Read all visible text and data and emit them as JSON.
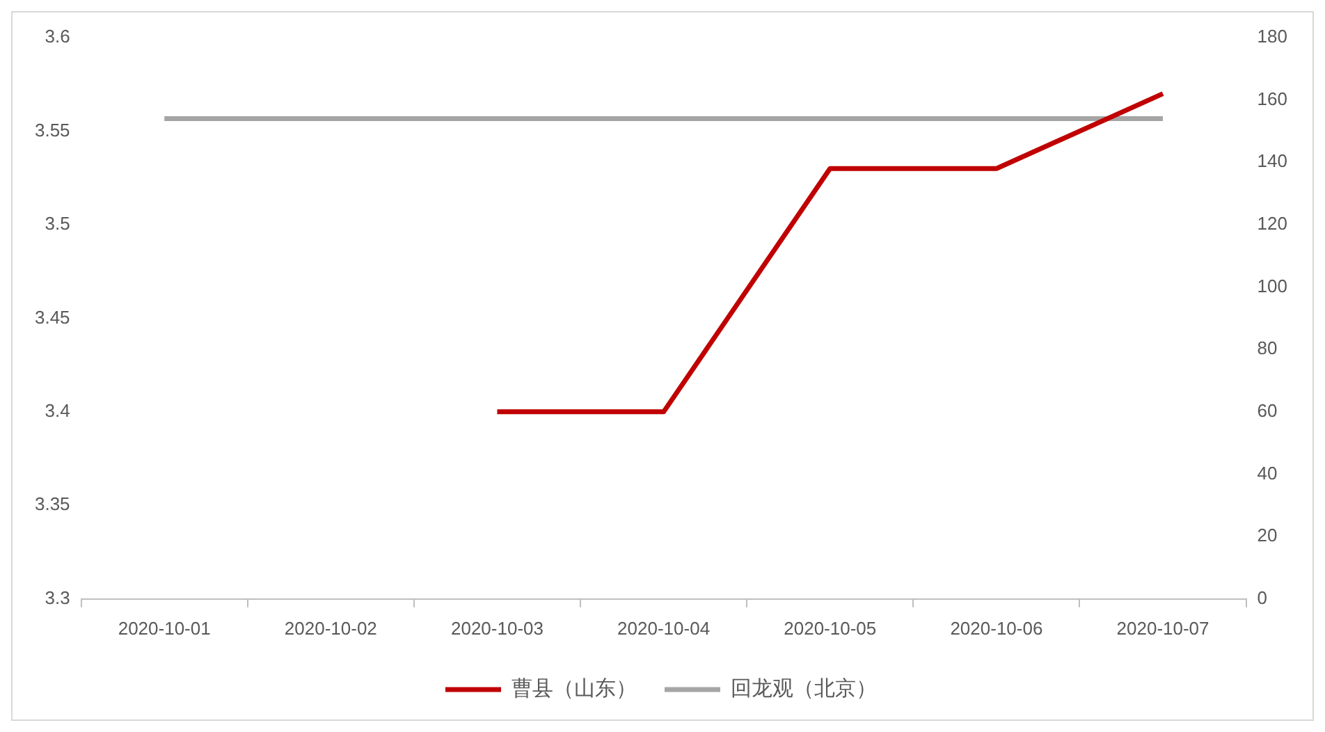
{
  "chart_data": {
    "type": "line",
    "categories": [
      "2020-10-01",
      "2020-10-02",
      "2020-10-03",
      "2020-10-04",
      "2020-10-05",
      "2020-10-06",
      "2020-10-07"
    ],
    "series": [
      {
        "name": "曹县（山东）",
        "color": "#c00000",
        "values": [
          null,
          null,
          3.4,
          3.4,
          3.53,
          3.53,
          3.57
        ]
      },
      {
        "name": "回龙观（北京）",
        "color": "#a5a5a5",
        "axis": "y2",
        "values": [
          154,
          154,
          154,
          154,
          154,
          154,
          154
        ]
      }
    ],
    "ylim": [
      3.3,
      3.6
    ],
    "yticks": [
      3.3,
      3.35,
      3.4,
      3.45,
      3.5,
      3.55,
      3.6
    ],
    "y2lim": [
      0,
      180
    ],
    "y2ticks": [
      0,
      20,
      40,
      60,
      80,
      100,
      120,
      140,
      160,
      180
    ],
    "legend": "bottom",
    "marker": "none",
    "line_style": "solid"
  }
}
